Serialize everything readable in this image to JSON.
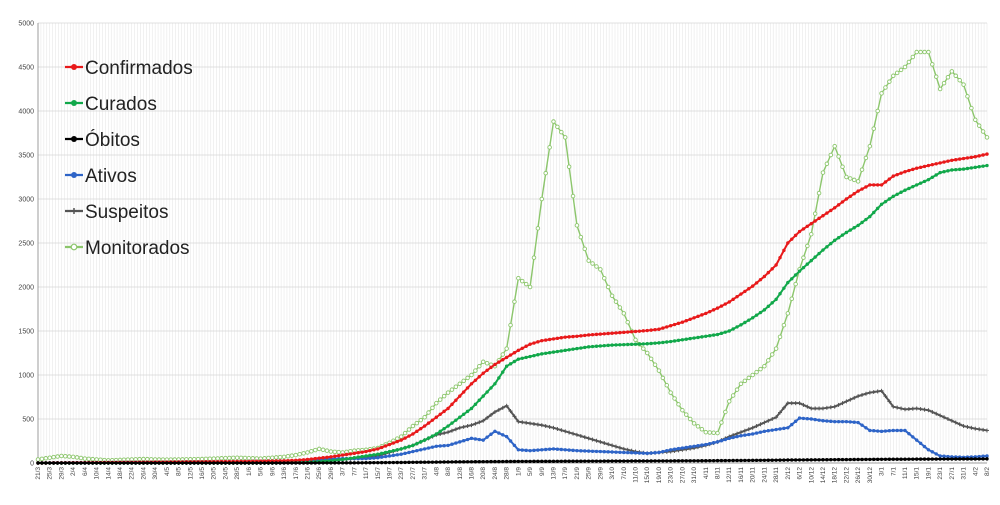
{
  "chart_data": {
    "type": "line",
    "title": "",
    "xlabel": "",
    "ylabel": "",
    "ylim": [
      0,
      5000
    ],
    "yticks": [
      0,
      500,
      1000,
      1500,
      2000,
      2500,
      3000,
      3500,
      4000,
      4500,
      5000
    ],
    "grid": true,
    "legend_position": "top-left",
    "categories": [
      "21/3",
      "25/3",
      "29/3",
      "2/4",
      "6/4",
      "10/4",
      "14/4",
      "18/4",
      "22/4",
      "26/4",
      "30/4",
      "4/5",
      "8/5",
      "12/5",
      "16/5",
      "20/5",
      "24/5",
      "28/5",
      "1/6",
      "5/6",
      "9/6",
      "13/6",
      "17/6",
      "21/6",
      "25/6",
      "29/6",
      "3/7",
      "7/7",
      "11/7",
      "15/7",
      "19/7",
      "23/7",
      "27/7",
      "31/7",
      "4/8",
      "8/8",
      "12/8",
      "16/8",
      "20/8",
      "24/8",
      "28/8",
      "1/9",
      "5/9",
      "9/9",
      "13/9",
      "17/9",
      "21/9",
      "25/9",
      "29/9",
      "3/10",
      "7/10",
      "11/10",
      "15/10",
      "19/10",
      "23/10",
      "27/10",
      "31/10",
      "4/11",
      "8/11",
      "12/11",
      "16/11",
      "20/11",
      "24/11",
      "28/11",
      "2/12",
      "6/12",
      "10/12",
      "14/12",
      "18/12",
      "22/12",
      "26/12",
      "30/12",
      "3/1",
      "7/1",
      "11/1",
      "15/1",
      "19/1",
      "23/1",
      "27/1",
      "31/1",
      "4/2",
      "8/2"
    ],
    "series": [
      {
        "name": "Confirmados",
        "color": "#e8191a",
        "marker": "circle-filled",
        "values": [
          0,
          1,
          2,
          3,
          4,
          5,
          6,
          7,
          8,
          9,
          10,
          11,
          12,
          13,
          14,
          15,
          16,
          17,
          18,
          20,
          22,
          25,
          30,
          40,
          55,
          70,
          90,
          110,
          130,
          160,
          210,
          260,
          330,
          420,
          520,
          620,
          760,
          900,
          1020,
          1120,
          1200,
          1280,
          1350,
          1390,
          1410,
          1430,
          1440,
          1455,
          1465,
          1475,
          1485,
          1495,
          1505,
          1520,
          1560,
          1600,
          1650,
          1700,
          1760,
          1830,
          1920,
          2010,
          2120,
          2250,
          2500,
          2630,
          2720,
          2810,
          2900,
          3000,
          3090,
          3160,
          3160,
          3260,
          3310,
          3350,
          3380,
          3410,
          3440,
          3460,
          3480,
          3510
        ]
      },
      {
        "name": "Curados",
        "color": "#11a84a",
        "marker": "circle-filled",
        "values": [
          0,
          0,
          0,
          0,
          0,
          0,
          0,
          0,
          0,
          0,
          0,
          0,
          0,
          0,
          0,
          0,
          0,
          0,
          0,
          0,
          0,
          2,
          5,
          10,
          15,
          25,
          40,
          60,
          80,
          100,
          130,
          160,
          200,
          260,
          330,
          420,
          520,
          620,
          760,
          900,
          1100,
          1180,
          1210,
          1240,
          1260,
          1280,
          1300,
          1320,
          1330,
          1340,
          1345,
          1350,
          1355,
          1365,
          1380,
          1400,
          1420,
          1440,
          1460,
          1500,
          1570,
          1650,
          1740,
          1860,
          2050,
          2180,
          2300,
          2420,
          2530,
          2620,
          2700,
          2800,
          2940,
          3030,
          3100,
          3160,
          3220,
          3300,
          3330,
          3340,
          3360,
          3380
        ]
      },
      {
        "name": "Óbitos",
        "color": "#000000",
        "marker": "circle-filled",
        "values": [
          0,
          0,
          0,
          0,
          0,
          0,
          0,
          0,
          0,
          0,
          0,
          0,
          0,
          0,
          0,
          0,
          0,
          0,
          0,
          0,
          0,
          0,
          0,
          0,
          1,
          1,
          2,
          2,
          3,
          4,
          5,
          6,
          8,
          9,
          10,
          12,
          13,
          14,
          15,
          16,
          17,
          18,
          18,
          19,
          19,
          20,
          20,
          21,
          21,
          22,
          22,
          23,
          23,
          24,
          24,
          25,
          25,
          26,
          27,
          28,
          29,
          30,
          31,
          32,
          34,
          35,
          36,
          37,
          38,
          39,
          40,
          41,
          42,
          43,
          43,
          44,
          44,
          45,
          45,
          46,
          46,
          47
        ]
      },
      {
        "name": "Ativos",
        "color": "#2e64c7",
        "marker": "circle-filled",
        "values": [
          0,
          1,
          2,
          3,
          4,
          5,
          6,
          7,
          8,
          9,
          10,
          11,
          12,
          13,
          14,
          15,
          16,
          17,
          18,
          20,
          22,
          23,
          25,
          30,
          40,
          45,
          50,
          50,
          50,
          60,
          80,
          100,
          130,
          160,
          190,
          200,
          240,
          280,
          260,
          360,
          300,
          150,
          140,
          150,
          160,
          150,
          140,
          135,
          130,
          125,
          120,
          115,
          110,
          120,
          150,
          170,
          190,
          210,
          240,
          280,
          310,
          330,
          360,
          380,
          400,
          510,
          500,
          480,
          470,
          470,
          460,
          370,
          360,
          370,
          370,
          260,
          150,
          80,
          70,
          65,
          70,
          80
        ]
      },
      {
        "name": "Suspeitos",
        "color": "#555555",
        "marker": "plus",
        "values": [
          0,
          0,
          0,
          0,
          0,
          0,
          0,
          0,
          0,
          0,
          0,
          0,
          0,
          0,
          0,
          0,
          0,
          0,
          0,
          0,
          0,
          5,
          10,
          15,
          20,
          30,
          40,
          50,
          60,
          80,
          120,
          160,
          200,
          260,
          320,
          350,
          400,
          430,
          480,
          580,
          650,
          470,
          450,
          430,
          400,
          360,
          320,
          280,
          240,
          200,
          160,
          130,
          110,
          120,
          130,
          150,
          170,
          200,
          240,
          300,
          350,
          400,
          460,
          520,
          680,
          680,
          620,
          620,
          640,
          700,
          760,
          800,
          820,
          640,
          610,
          620,
          600,
          540,
          480,
          420,
          390,
          370
        ]
      },
      {
        "name": "Monitorados",
        "color": "#8cc66c",
        "marker": "circle-open",
        "values": [
          40,
          60,
          80,
          70,
          50,
          40,
          30,
          35,
          40,
          45,
          40,
          38,
          40,
          42,
          45,
          50,
          55,
          60,
          55,
          50,
          60,
          70,
          90,
          120,
          160,
          130,
          120,
          140,
          150,
          170,
          230,
          300,
          420,
          520,
          680,
          800,
          900,
          1000,
          1150,
          1100,
          1300,
          2100,
          2000,
          3000,
          3880,
          3700,
          2700,
          2300,
          2200,
          1900,
          1700,
          1400,
          1250,
          1050,
          800,
          600,
          450,
          350,
          340,
          700,
          900,
          1000,
          1100,
          1300,
          1700,
          2200,
          2600,
          3300,
          3600,
          3250,
          3200,
          3600,
          4200,
          4400,
          4500,
          4670,
          4670,
          4250,
          4450,
          4300,
          3900,
          3700
        ]
      }
    ]
  }
}
